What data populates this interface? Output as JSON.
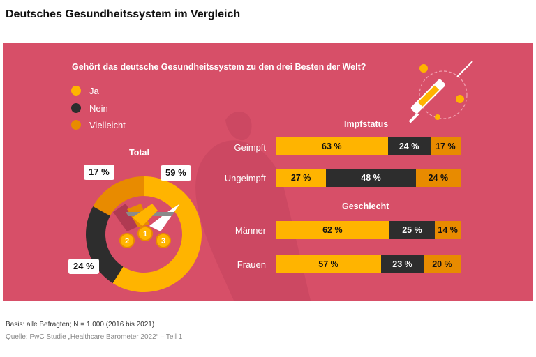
{
  "page_title": "Deutsches Gesundheitssystem im Vergleich",
  "colors": {
    "panel": "#d74f68",
    "ja": "#ffb400",
    "nein": "#2d2d2d",
    "vielleicht": "#e88b00",
    "deco": "#cc4862"
  },
  "chart_data": [
    {
      "type": "pie",
      "title": "Gehört das deutsche Gesundheitssystem zu den drei Besten der Welt?",
      "subtitle": "Total",
      "legend": [
        "Ja",
        "Nein",
        "Vielleicht"
      ],
      "categories": [
        "Ja",
        "Nein",
        "Vielleicht"
      ],
      "values": [
        59,
        24,
        17
      ],
      "labels": [
        "59 %",
        "24 %",
        "17 %"
      ]
    },
    {
      "type": "bar",
      "orientation": "horizontal",
      "stacked": true,
      "title": "Impfstatus",
      "categories": [
        "Geimpft",
        "Ungeimpft"
      ],
      "series": [
        {
          "name": "Ja",
          "values": [
            63,
            27
          ],
          "labels": [
            "63 %",
            "27 %"
          ]
        },
        {
          "name": "Nein",
          "values": [
            24,
            48
          ],
          "labels": [
            "24 %",
            "48 %"
          ]
        },
        {
          "name": "Vielleicht",
          "values": [
            17,
            24
          ],
          "labels": [
            "17 %",
            "24 %"
          ]
        }
      ]
    },
    {
      "type": "bar",
      "orientation": "horizontal",
      "stacked": true,
      "title": "Geschlecht",
      "categories": [
        "Männer",
        "Frauen"
      ],
      "series": [
        {
          "name": "Ja",
          "values": [
            62,
            57
          ],
          "labels": [
            "62 %",
            "57 %"
          ]
        },
        {
          "name": "Nein",
          "values": [
            25,
            23
          ],
          "labels": [
            "25 %",
            "23 %"
          ]
        },
        {
          "name": "Vielleicht",
          "values": [
            14,
            20
          ],
          "labels": [
            "14 %",
            "20 %"
          ]
        }
      ]
    }
  ],
  "medals": [
    "1",
    "2",
    "3"
  ],
  "footnotes": {
    "basis": "Basis: alle Befragten; N = 1.000 (2016 bis 2021)",
    "source": "Quelle: PwC Studie „Healthcare Barometer 2022“ – Teil 1"
  }
}
